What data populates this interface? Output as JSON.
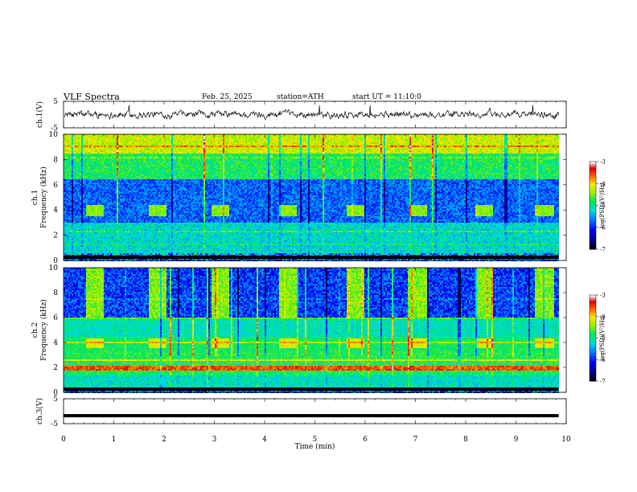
{
  "header": {
    "title": "VLF  Spectra",
    "date": "Feb. 25, 2025",
    "station": "station=ATH",
    "start": "start  UT  =    11:10:0"
  },
  "chart_data": [
    {
      "type": "line",
      "panel": "ch1-waveform",
      "ylabel": "ch.1(V)",
      "ylim": [
        -5,
        5
      ],
      "yticks": [
        "5",
        "-5"
      ],
      "mean": 0,
      "amplitude": 1,
      "color": "#000000"
    },
    {
      "type": "heatmap",
      "panel": "ch1-spectrogram",
      "ylabel": "ch.1\nFrequency (kHz)",
      "ylim": [
        0,
        10
      ],
      "yticks": [
        "0",
        "2",
        "4",
        "6",
        "8",
        "10"
      ],
      "burst_frequency_khz": 4,
      "burst_times_min": [
        0.6,
        1.85,
        3.1,
        4.45,
        5.8,
        7.05,
        8.35,
        9.55
      ],
      "colorbar": {
        "label": "log(PSD)(V²/Hz)",
        "range": [
          -7,
          -3
        ],
        "ticks": [
          "-3",
          "-4",
          "-5",
          "-6",
          "-7"
        ]
      }
    },
    {
      "type": "heatmap",
      "panel": "ch2-spectrogram",
      "ylabel": "ch.2\nFrequency (kHz)",
      "ylim": [
        0,
        10
      ],
      "yticks": [
        "0",
        "2",
        "4",
        "6",
        "8",
        "10"
      ],
      "burst_frequency_khz": 4,
      "burst_times_min": [
        0.6,
        1.85,
        3.1,
        4.45,
        5.8,
        7.05,
        8.35,
        9.55
      ],
      "colorbar": {
        "label": "log(PSD)(V²/Hz)",
        "range": [
          -7,
          -3
        ],
        "ticks": [
          "-3",
          "-4",
          "-5",
          "-6",
          "-7"
        ]
      }
    },
    {
      "type": "line",
      "panel": "ch3-waveform",
      "ylabel": "ch.3(V)",
      "ylim": [
        -5,
        5
      ],
      "yticks": [
        "5",
        "-5"
      ],
      "mean": -1.8,
      "amplitude": 0.1,
      "color": "#000000"
    }
  ],
  "x_axis": {
    "xlabel": "Time  (min)",
    "xlim": [
      0,
      10
    ],
    "xticks": [
      "0",
      "1",
      "2",
      "3",
      "4",
      "5",
      "6",
      "7",
      "8",
      "9",
      "10"
    ],
    "data_end_min": 9.85
  }
}
